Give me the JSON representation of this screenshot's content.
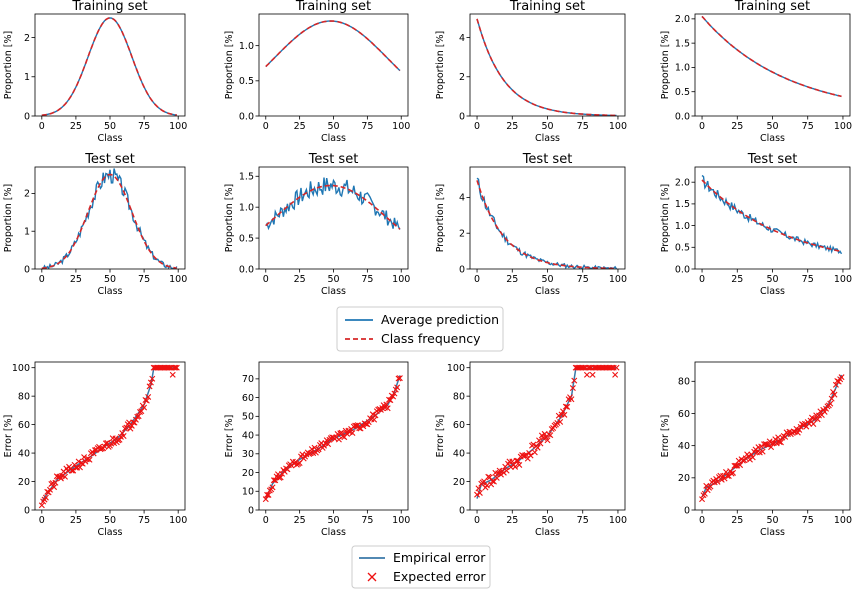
{
  "colors": {
    "prediction": "#1f77b4",
    "frequency": "#d62728",
    "empirical": "#3a78a8",
    "expected": "#ee1111",
    "axis": "#000000"
  },
  "legends": {
    "top": {
      "items": [
        {
          "label": "Average prediction",
          "style": "solid-line",
          "color_key": "prediction"
        },
        {
          "label": "Class frequency",
          "style": "dashed-line",
          "color_key": "frequency"
        }
      ]
    },
    "bottom": {
      "items": [
        {
          "label": "Empirical error",
          "style": "solid-line",
          "color_key": "empirical"
        },
        {
          "label": "Expected error",
          "style": "x-marker",
          "color_key": "expected"
        }
      ]
    }
  },
  "chart_data": [
    {
      "id": "train-gaussian",
      "row": 0,
      "col": 0,
      "type": "line",
      "title": "Training set",
      "xlabel": "Class",
      "ylabel": "Proportion [%]",
      "xlim": [
        -5,
        105
      ],
      "ylim": [
        0,
        2.6
      ],
      "xticks": [
        0,
        25,
        50,
        75,
        100
      ],
      "yticks": [
        0,
        1,
        2
      ],
      "shape": {
        "kind": "gaussian",
        "amplitude": 2.5,
        "center": 50,
        "sigma": 16
      },
      "series": [
        {
          "name": "Class frequency",
          "style": "dashed"
        },
        {
          "name": "Average prediction",
          "style": "solid"
        }
      ]
    },
    {
      "id": "train-broad",
      "row": 0,
      "col": 1,
      "type": "line",
      "title": "Training set",
      "xlabel": "Class",
      "ylabel": "Proportion [%]",
      "xlim": [
        -5,
        105
      ],
      "ylim": [
        0,
        1.45
      ],
      "xticks": [
        0,
        25,
        50,
        75,
        100
      ],
      "yticks": [
        0.0,
        0.5,
        1.0
      ],
      "shape": {
        "kind": "gaussian",
        "amplitude": 1.35,
        "center": 48,
        "sigma": 42
      },
      "series": [
        {
          "name": "Class frequency",
          "style": "dashed"
        },
        {
          "name": "Average prediction",
          "style": "solid"
        }
      ]
    },
    {
      "id": "train-exp5",
      "row": 0,
      "col": 2,
      "type": "line",
      "title": "Training set",
      "xlabel": "Class",
      "ylabel": "Proportion [%]",
      "xlim": [
        -5,
        105
      ],
      "ylim": [
        0,
        5.2
      ],
      "xticks": [
        0,
        25,
        50,
        75,
        100
      ],
      "yticks": [
        0,
        2,
        4
      ],
      "shape": {
        "kind": "exponential",
        "amplitude": 4.95,
        "tau": 19
      },
      "series": [
        {
          "name": "Class frequency",
          "style": "dashed"
        },
        {
          "name": "Average prediction",
          "style": "solid"
        }
      ]
    },
    {
      "id": "train-exp2",
      "row": 0,
      "col": 3,
      "type": "line",
      "title": "Training set",
      "xlabel": "Class",
      "ylabel": "Proportion [%]",
      "xlim": [
        -5,
        105
      ],
      "ylim": [
        0,
        2.1
      ],
      "xticks": [
        0,
        25,
        50,
        75,
        100
      ],
      "yticks": [
        0.0,
        0.5,
        1.0,
        1.5,
        2.0
      ],
      "shape": {
        "kind": "exponential",
        "amplitude": 2.05,
        "tau": 61
      },
      "series": [
        {
          "name": "Class frequency",
          "style": "dashed"
        },
        {
          "name": "Average prediction",
          "style": "solid"
        }
      ]
    },
    {
      "id": "test-gaussian",
      "row": 1,
      "col": 0,
      "type": "line",
      "title": "Test set",
      "xlabel": "Class",
      "ylabel": "Proportion [%]",
      "xlim": [
        -5,
        105
      ],
      "ylim": [
        0,
        2.7
      ],
      "xticks": [
        0,
        25,
        50,
        75,
        100
      ],
      "yticks": [
        0,
        1,
        2
      ],
      "shape": {
        "kind": "gaussian",
        "amplitude": 2.5,
        "center": 50,
        "sigma": 16
      },
      "noise": 0.17,
      "seed": 3,
      "series": [
        {
          "name": "Class frequency",
          "style": "dashed"
        },
        {
          "name": "Average prediction",
          "style": "solid"
        }
      ]
    },
    {
      "id": "test-broad",
      "row": 1,
      "col": 1,
      "type": "line",
      "title": "Test set",
      "xlabel": "Class",
      "ylabel": "Proportion [%]",
      "xlim": [
        -5,
        105
      ],
      "ylim": [
        0,
        1.65
      ],
      "xticks": [
        0,
        25,
        50,
        75,
        100
      ],
      "yticks": [
        0.0,
        0.5,
        1.0,
        1.5
      ],
      "shape": {
        "kind": "gaussian",
        "amplitude": 1.35,
        "center": 48,
        "sigma": 42
      },
      "noise": 0.12,
      "seed": 7,
      "series": [
        {
          "name": "Class frequency",
          "style": "dashed"
        },
        {
          "name": "Average prediction",
          "style": "solid"
        }
      ]
    },
    {
      "id": "test-exp5",
      "row": 1,
      "col": 2,
      "type": "line",
      "title": "Test set",
      "xlabel": "Class",
      "ylabel": "Proportion [%]",
      "xlim": [
        -5,
        105
      ],
      "ylim": [
        0,
        5.7
      ],
      "xticks": [
        0,
        25,
        50,
        75,
        100
      ],
      "yticks": [
        0,
        2,
        4
      ],
      "shape": {
        "kind": "exponential",
        "amplitude": 4.95,
        "tau": 19
      },
      "noise": 0.3,
      "seed": 11,
      "series": [
        {
          "name": "Class frequency",
          "style": "dashed"
        },
        {
          "name": "Average prediction",
          "style": "solid"
        }
      ]
    },
    {
      "id": "test-exp2",
      "row": 1,
      "col": 3,
      "type": "line",
      "title": "Test set",
      "xlabel": "Class",
      "ylabel": "Proportion [%]",
      "xlim": [
        -5,
        105
      ],
      "ylim": [
        0,
        2.35
      ],
      "xticks": [
        0,
        25,
        50,
        75,
        100
      ],
      "yticks": [
        0.0,
        0.5,
        1.0,
        1.5,
        2.0
      ],
      "shape": {
        "kind": "exponential",
        "amplitude": 2.05,
        "tau": 61
      },
      "noise": 0.1,
      "seed": 17,
      "series": [
        {
          "name": "Class frequency",
          "style": "dashed"
        },
        {
          "name": "Average prediction",
          "style": "solid"
        }
      ]
    },
    {
      "id": "error-1",
      "row": 2,
      "col": 0,
      "type": "scatter",
      "title": "",
      "xlabel": "Class",
      "ylabel": "Error [%]",
      "xlim": [
        -5,
        105
      ],
      "ylim": [
        0,
        104
      ],
      "xticks": [
        0,
        25,
        50,
        75,
        100
      ],
      "yticks": [
        0,
        20,
        40,
        60,
        80,
        100
      ],
      "curve": [
        [
          0,
          6
        ],
        [
          5,
          13
        ],
        [
          12,
          22
        ],
        [
          25,
          31
        ],
        [
          35,
          37
        ],
        [
          45,
          44
        ],
        [
          55,
          50
        ],
        [
          65,
          60
        ],
        [
          75,
          74
        ],
        [
          80,
          88
        ],
        [
          82,
          99
        ],
        [
          100,
          100
        ]
      ],
      "scatter_noise": 3,
      "seed": 21,
      "series": [
        {
          "name": "Empirical error",
          "style": "solid"
        },
        {
          "name": "Expected error",
          "style": "x"
        }
      ]
    },
    {
      "id": "error-2",
      "row": 2,
      "col": 1,
      "type": "scatter",
      "title": "",
      "xlabel": "Class",
      "ylabel": "Error [%]",
      "xlim": [
        -5,
        105
      ],
      "ylim": [
        0,
        79
      ],
      "xticks": [
        0,
        25,
        50,
        75,
        100
      ],
      "yticks": [
        0,
        10,
        20,
        30,
        40,
        50,
        60,
        70
      ],
      "curve": [
        [
          0,
          6
        ],
        [
          5,
          14
        ],
        [
          15,
          22
        ],
        [
          25,
          27
        ],
        [
          35,
          31
        ],
        [
          50,
          38
        ],
        [
          65,
          43
        ],
        [
          80,
          50
        ],
        [
          90,
          56
        ],
        [
          95,
          63
        ],
        [
          100,
          74
        ]
      ],
      "scatter_noise": 2,
      "seed": 31,
      "series": [
        {
          "name": "Empirical error",
          "style": "solid"
        },
        {
          "name": "Expected error",
          "style": "x"
        }
      ]
    },
    {
      "id": "error-3",
      "row": 2,
      "col": 2,
      "type": "scatter",
      "title": "",
      "xlabel": "Class",
      "ylabel": "Error [%]",
      "xlim": [
        -5,
        105
      ],
      "ylim": [
        0,
        104
      ],
      "xticks": [
        0,
        25,
        50,
        75,
        100
      ],
      "yticks": [
        0,
        20,
        40,
        60,
        80,
        100
      ],
      "curve": [
        [
          0,
          8
        ],
        [
          3,
          18
        ],
        [
          10,
          21
        ],
        [
          20,
          29
        ],
        [
          30,
          35
        ],
        [
          40,
          43
        ],
        [
          50,
          52
        ],
        [
          60,
          66
        ],
        [
          67,
          80
        ],
        [
          70,
          99
        ],
        [
          100,
          100
        ]
      ],
      "scatter_noise": 4,
      "seed": 41,
      "series": [
        {
          "name": "Empirical error",
          "style": "solid"
        },
        {
          "name": "Expected error",
          "style": "x"
        }
      ]
    },
    {
      "id": "error-4",
      "row": 2,
      "col": 3,
      "type": "scatter",
      "title": "",
      "xlabel": "Class",
      "ylabel": "Error [%]",
      "xlim": [
        -5,
        105
      ],
      "ylim": [
        0,
        92
      ],
      "xticks": [
        0,
        25,
        50,
        75,
        100
      ],
      "yticks": [
        0,
        20,
        40,
        60,
        80
      ],
      "curve": [
        [
          0,
          8
        ],
        [
          3,
          14
        ],
        [
          10,
          17
        ],
        [
          20,
          24
        ],
        [
          30,
          31
        ],
        [
          40,
          37
        ],
        [
          50,
          41
        ],
        [
          60,
          46
        ],
        [
          70,
          51
        ],
        [
          80,
          56
        ],
        [
          90,
          66
        ],
        [
          100,
          86
        ]
      ],
      "scatter_noise": 2.5,
      "seed": 51,
      "series": [
        {
          "name": "Empirical error",
          "style": "solid"
        },
        {
          "name": "Expected error",
          "style": "x"
        }
      ]
    }
  ]
}
